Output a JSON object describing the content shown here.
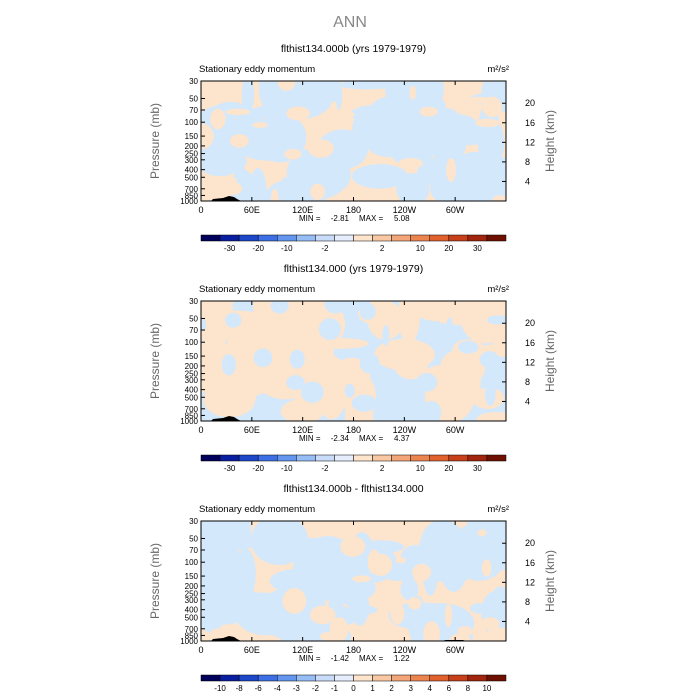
{
  "main_title": "ANN",
  "colors": {
    "light_blue": "#d4e8fc",
    "light_peach": "#fde4cc",
    "frame": "#000000",
    "axis_label": "#666666"
  },
  "chart_data": [
    {
      "type": "heatmap",
      "title": "flthist134.000b (yrs 1979-1979)",
      "subtitle": "Stationary eddy momentum",
      "units": "m²/s²",
      "ylabel": "Pressure (mb)",
      "ylabel_right": "Height (km)",
      "x_ticks": [
        "0",
        "60E",
        "120E",
        "180",
        "120W",
        "60W"
      ],
      "y_ticks": [
        "30",
        "50",
        "70",
        "100",
        "150",
        "200",
        "250",
        "300",
        "400",
        "500",
        "700",
        "850",
        "1000"
      ],
      "height_ticks": [
        "4",
        "8",
        "12",
        "16",
        "20"
      ],
      "stats": {
        "min_label": "MIN =",
        "min": "-2.81",
        "max_label": "MAX =",
        "max": "5.08"
      },
      "colorbar": {
        "labels": [
          "-30",
          "-20",
          "-10",
          "-2",
          "2",
          "10",
          "20",
          "30"
        ],
        "colors": [
          "#00005a",
          "#0a1ea0",
          "#1e46c8",
          "#3c6ee6",
          "#6496f0",
          "#96bef5",
          "#c8dcfa",
          "#e6eefc",
          "#fde4cc",
          "#f9c8a3",
          "#f3a678",
          "#ec8450",
          "#e0602e",
          "#c8401a",
          "#a0250c",
          "#6e1000"
        ]
      },
      "dominant_field": "positive"
    },
    {
      "type": "heatmap",
      "title": "flthist134.000 (yrs 1979-1979)",
      "subtitle": "Stationary eddy momentum",
      "units": "m²/s²",
      "ylabel": "Pressure (mb)",
      "ylabel_right": "Height (km)",
      "x_ticks": [
        "0",
        "60E",
        "120E",
        "180",
        "120W",
        "60W"
      ],
      "y_ticks": [
        "30",
        "50",
        "70",
        "100",
        "150",
        "200",
        "250",
        "300",
        "400",
        "500",
        "700",
        "850",
        "1000"
      ],
      "height_ticks": [
        "4",
        "8",
        "12",
        "16",
        "20"
      ],
      "stats": {
        "min_label": "MIN =",
        "min": "-2.34",
        "max_label": "MAX =",
        "max": "4.37"
      },
      "colorbar": {
        "labels": [
          "-30",
          "-20",
          "-10",
          "-2",
          "2",
          "10",
          "20",
          "30"
        ],
        "colors": [
          "#00005a",
          "#0a1ea0",
          "#1e46c8",
          "#3c6ee6",
          "#6496f0",
          "#96bef5",
          "#c8dcfa",
          "#e6eefc",
          "#fde4cc",
          "#f9c8a3",
          "#f3a678",
          "#ec8450",
          "#e0602e",
          "#c8401a",
          "#a0250c",
          "#6e1000"
        ]
      },
      "dominant_field": "negative"
    },
    {
      "type": "heatmap",
      "title": "flthist134.000b - flthist134.000",
      "subtitle": "Stationary eddy momentum",
      "units": "m²/s²",
      "ylabel": "Pressure (mb)",
      "ylabel_right": "Height (km)",
      "x_ticks": [
        "0",
        "60E",
        "120E",
        "180",
        "120W",
        "60W"
      ],
      "y_ticks": [
        "30",
        "50",
        "70",
        "100",
        "150",
        "200",
        "250",
        "300",
        "400",
        "500",
        "700",
        "850",
        "1000"
      ],
      "height_ticks": [
        "4",
        "8",
        "12",
        "16",
        "20"
      ],
      "stats": {
        "min_label": "MIN =",
        "min": "-1.42",
        "max_label": "MAX =",
        "max": "1.22"
      },
      "colorbar": {
        "labels": [
          "-10",
          "-8",
          "-6",
          "-4",
          "-3",
          "-2",
          "-1",
          "0",
          "1",
          "2",
          "3",
          "4",
          "6",
          "8",
          "10"
        ],
        "colors": [
          "#00005a",
          "#0a1ea0",
          "#1e46c8",
          "#3c6ee6",
          "#6496f0",
          "#96bef5",
          "#c8dcfa",
          "#e6eefc",
          "#fde4cc",
          "#f9c8a3",
          "#f3a678",
          "#ec8450",
          "#e0602e",
          "#c8401a",
          "#a0250c",
          "#6e1000"
        ]
      },
      "dominant_field": "mixed"
    }
  ]
}
